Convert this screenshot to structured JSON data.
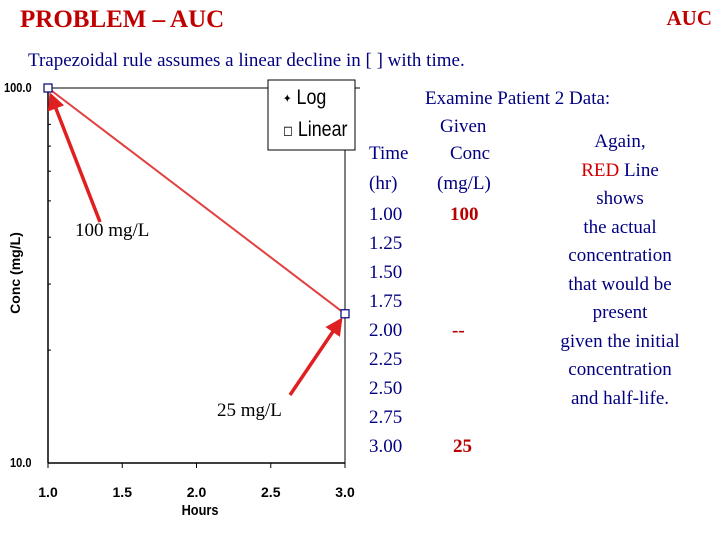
{
  "header": {
    "title": "PROBLEM – AUC",
    "corner_label": "AUC",
    "subtitle": "Trapezoidal rule assumes a linear decline in [ ] with time.",
    "examine": "Examine Patient 2 Data:"
  },
  "chart_data": {
    "type": "line",
    "xlabel": "Hours",
    "ylabel": "Conc (mg/L)",
    "x_ticks": [
      "1.0",
      "1.5",
      "2.0",
      "2.5",
      "3.0"
    ],
    "y_ticks": [
      "100.0",
      "10.0"
    ],
    "xlim": [
      1.0,
      3.0
    ],
    "ylim": [
      10.0,
      100.0
    ],
    "series": [
      {
        "x": [
          1.0,
          3.0
        ],
        "y": [
          100,
          25
        ]
      }
    ],
    "scale_options": [
      {
        "label": "Log",
        "selected": true
      },
      {
        "label": "Linear",
        "selected": false
      }
    ],
    "annotations": [
      {
        "text": "100 mg/L",
        "target_x": 1.0,
        "target_y": 100
      },
      {
        "text": "25 mg/L",
        "target_x": 3.0,
        "target_y": 25
      }
    ],
    "colors": {
      "line": "#e04040",
      "arrow": "#e02020",
      "axis": "#000000"
    }
  },
  "table": {
    "header_given": "Given",
    "header_time": "Time",
    "header_conc": "Conc",
    "header_time_unit": "(hr)",
    "header_conc_unit": "(mg/L)",
    "times": [
      "1.00",
      "1.25",
      "1.50",
      "1.75",
      "2.00",
      "2.25",
      "2.50",
      "2.75",
      "3.00"
    ],
    "concs": [
      "100",
      "",
      "",
      "",
      "--",
      "",
      "",
      "",
      "25"
    ]
  },
  "note": {
    "line1": "Again,",
    "red_word": "RED",
    "line2_rest": " Line",
    "line3": "shows",
    "line4": "the actual",
    "line5": "concentration",
    "line6": "that would be",
    "line7": "present",
    "line8": "given the initial",
    "line9": "concentration",
    "line10": "and half-life."
  }
}
